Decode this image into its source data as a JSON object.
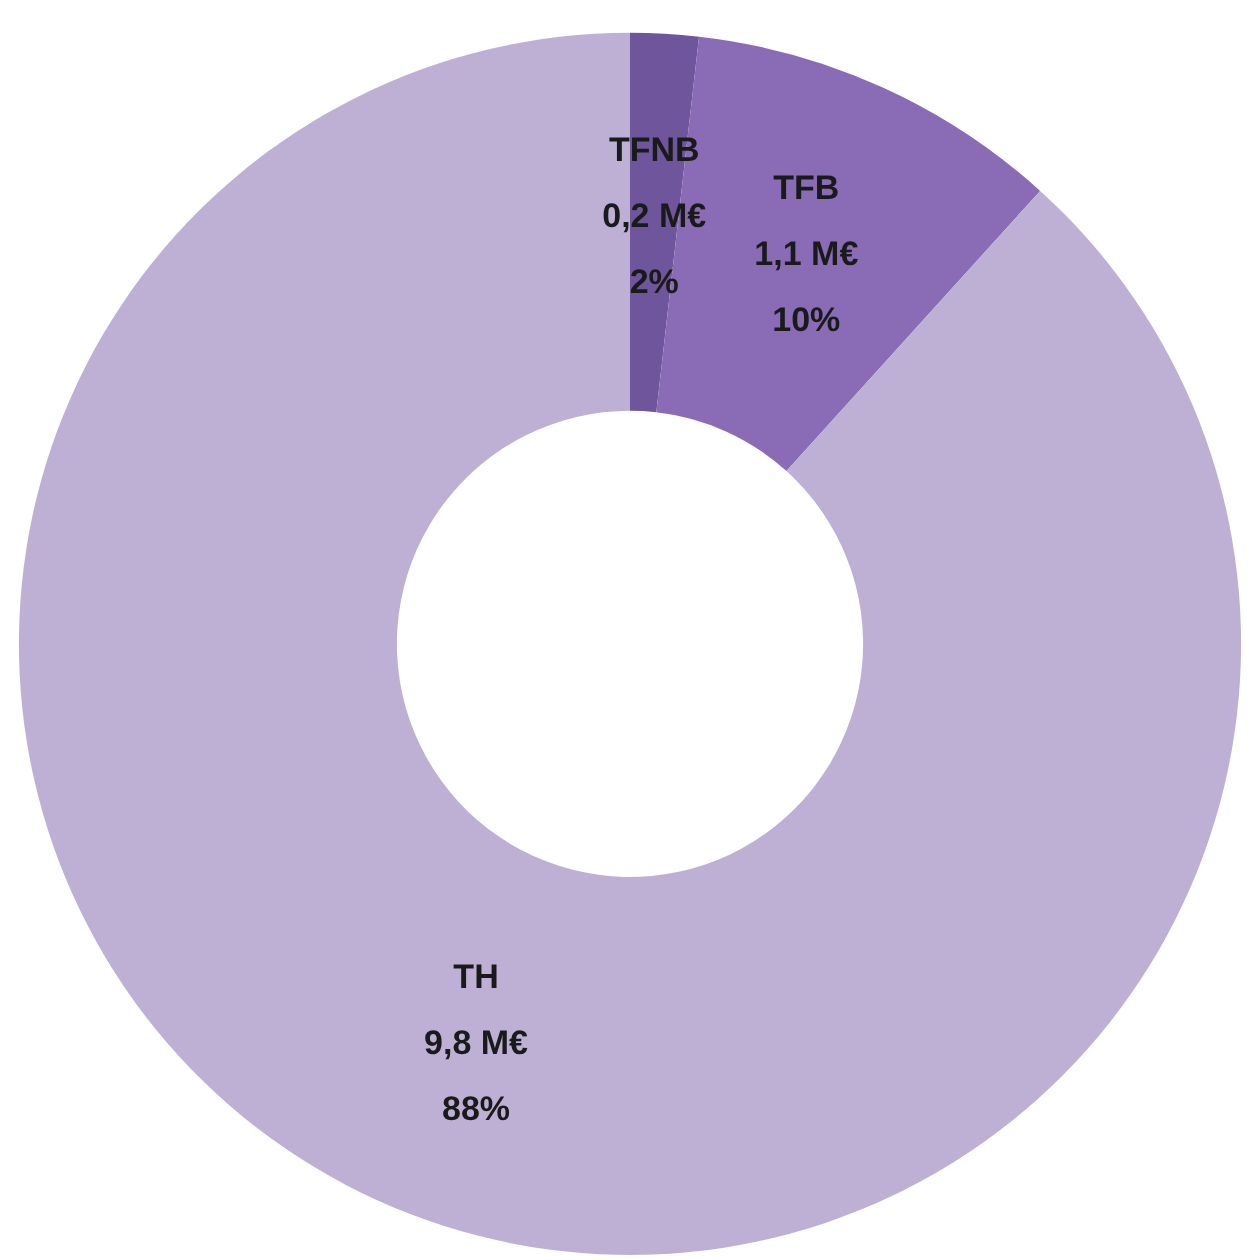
{
  "chart_data": {
    "type": "donut",
    "categories": [
      "TFNB",
      "TFB",
      "TH"
    ],
    "values": [
      0.2,
      1.1,
      9.8
    ],
    "colors": [
      "#6f559b",
      "#8a6cb6",
      "#bdb0d4"
    ],
    "value_labels": [
      "0,2 M€\n2%",
      "1,1 M€\n10%",
      "9,8 M€\n88%"
    ]
  }
}
